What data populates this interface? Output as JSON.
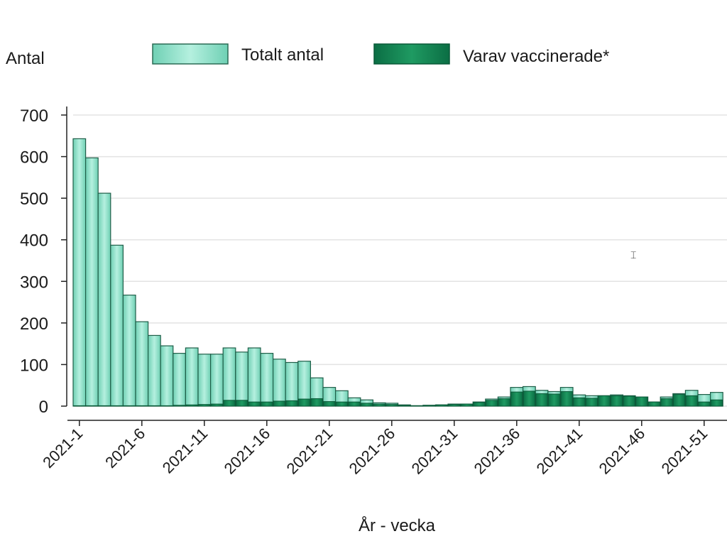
{
  "chart_data": {
    "type": "bar",
    "xlabel": "År - vecka",
    "ylabel": "Antal",
    "ylim": [
      0,
      700
    ],
    "yticks": [
      0,
      100,
      200,
      300,
      400,
      500,
      600,
      700
    ],
    "grid": true,
    "legend_position": "top",
    "categories": [
      "2021-1",
      "2021-2",
      "2021-3",
      "2021-4",
      "2021-5",
      "2021-6",
      "2021-7",
      "2021-8",
      "2021-9",
      "2021-10",
      "2021-11",
      "2021-12",
      "2021-13",
      "2021-14",
      "2021-15",
      "2021-16",
      "2021-17",
      "2021-18",
      "2021-19",
      "2021-20",
      "2021-21",
      "2021-22",
      "2021-23",
      "2021-24",
      "2021-25",
      "2021-26",
      "2021-27",
      "2021-28",
      "2021-29",
      "2021-30",
      "2021-31",
      "2021-32",
      "2021-33",
      "2021-34",
      "2021-35",
      "2021-36",
      "2021-37",
      "2021-38",
      "2021-39",
      "2021-40",
      "2021-41",
      "2021-42",
      "2021-43",
      "2021-44",
      "2021-45",
      "2021-46",
      "2021-47",
      "2021-48",
      "2021-49",
      "2021-50",
      "2021-51",
      "2021-52"
    ],
    "xtick_labels": [
      "2021-1",
      "2021-6",
      "2021-11",
      "2021-16",
      "2021-21",
      "2021-26",
      "2021-31",
      "2021-36",
      "2021-41",
      "2021-46",
      "2021-51"
    ],
    "series": [
      {
        "name": "Totalt antal",
        "color": "#7fd8bf",
        "values": [
          643,
          597,
          512,
          387,
          267,
          203,
          170,
          145,
          127,
          140,
          125,
          125,
          140,
          130,
          140,
          127,
          113,
          105,
          108,
          68,
          45,
          37,
          20,
          15,
          8,
          7,
          3,
          1,
          2,
          3,
          5,
          5,
          10,
          17,
          22,
          45,
          47,
          38,
          35,
          45,
          27,
          25,
          25,
          27,
          25,
          22,
          10,
          22,
          30,
          38,
          28,
          33
        ]
      },
      {
        "name": "Varav vaccinerade*",
        "color": "#0f7d4f",
        "values": [
          1,
          1,
          1,
          1,
          1,
          1,
          1,
          1,
          2,
          3,
          4,
          5,
          14,
          14,
          10,
          10,
          12,
          13,
          17,
          18,
          11,
          10,
          10,
          7,
          5,
          4,
          2,
          1,
          2,
          3,
          4,
          5,
          9,
          14,
          18,
          34,
          36,
          30,
          29,
          35,
          20,
          19,
          25,
          25,
          24,
          22,
          10,
          18,
          28,
          25,
          10,
          15
        ]
      }
    ]
  }
}
